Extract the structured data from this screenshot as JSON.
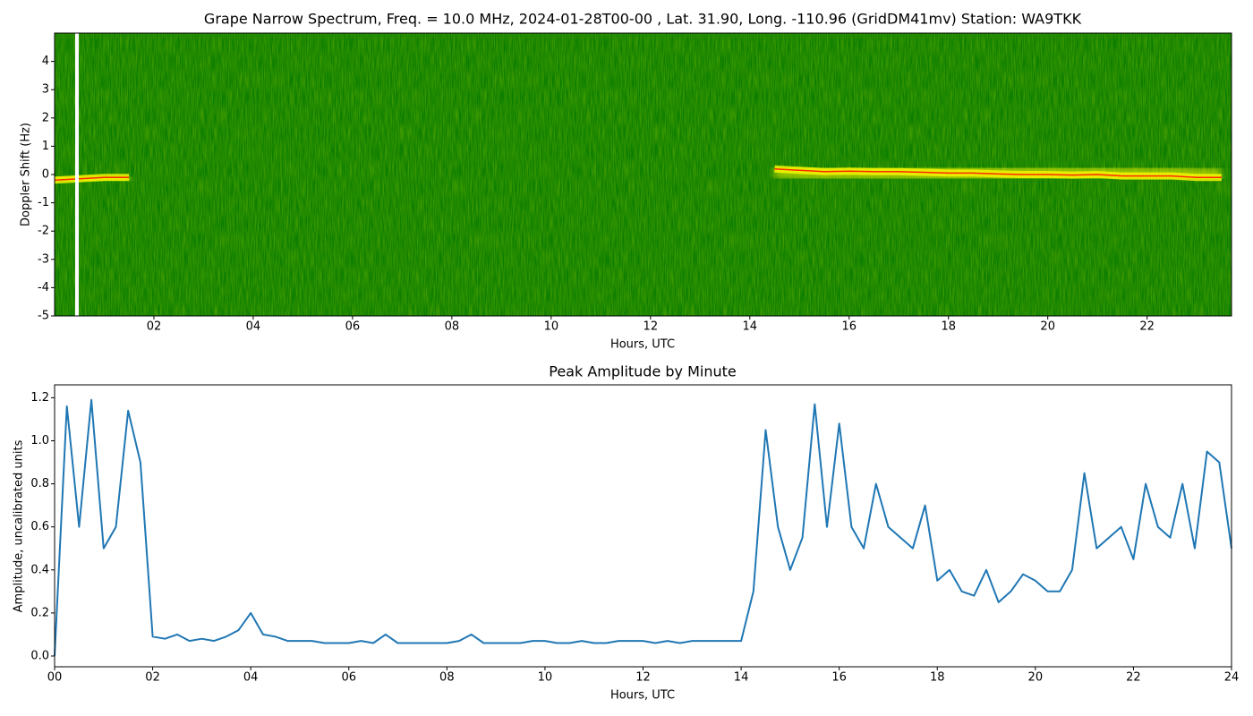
{
  "chart_data": [
    {
      "type": "spectrogram",
      "title": "Grape Narrow Spectrum, Freq. = 10.0 MHz, 2024-01-28T00-00 , Lat.  31.90, Long. -110.96 (GridDM41mv) Station: WA9TKK",
      "xlabel": "Hours, UTC",
      "ylabel": "Doppler Shift (Hz)",
      "xlim": [
        0,
        23.7
      ],
      "ylim": [
        -5,
        5
      ],
      "xticks": [
        {
          "value": 2,
          "label": "02"
        },
        {
          "value": 4,
          "label": "04"
        },
        {
          "value": 6,
          "label": "06"
        },
        {
          "value": 8,
          "label": "08"
        },
        {
          "value": 10,
          "label": "10"
        },
        {
          "value": 12,
          "label": "12"
        },
        {
          "value": 14,
          "label": "14"
        },
        {
          "value": 16,
          "label": "16"
        },
        {
          "value": 18,
          "label": "18"
        },
        {
          "value": 20,
          "label": "20"
        },
        {
          "value": 22,
          "label": "22"
        }
      ],
      "yticks": [
        -5,
        -4,
        -3,
        -2,
        -1,
        0,
        1,
        2,
        3,
        4
      ],
      "x": [
        0,
        0.5,
        1,
        1.5,
        2,
        2.5,
        3,
        3.5,
        4,
        4.5,
        5,
        5.5,
        6,
        6.5,
        7,
        7.5,
        8,
        8.5,
        9,
        9.5,
        10,
        10.5,
        11,
        11.5,
        12,
        12.5,
        13,
        13.5,
        14,
        14.5,
        15,
        15.5,
        16,
        16.5,
        17,
        17.5,
        18,
        18.5,
        19,
        19.5,
        20,
        20.5,
        21,
        21.5,
        22,
        22.5,
        23,
        23.5
      ],
      "values": [
        -0.2,
        -0.15,
        -0.1,
        -0.1,
        null,
        null,
        null,
        null,
        null,
        null,
        null,
        null,
        null,
        null,
        null,
        null,
        null,
        null,
        null,
        null,
        null,
        null,
        null,
        null,
        null,
        null,
        null,
        null,
        null,
        0.2,
        0.15,
        0.1,
        0.12,
        0.1,
        0.1,
        0.08,
        0.05,
        0.05,
        0.02,
        0.0,
        0.0,
        -0.02,
        0.0,
        -0.05,
        -0.05,
        -0.05,
        -0.1,
        -0.1
      ],
      "gap_x": [
        0.45
      ],
      "background_color": "#0b7d00",
      "signal_color": "#f4f400",
      "core_color": "#ff2a00"
    },
    {
      "type": "line",
      "title": "Peak Amplitude by Minute",
      "xlabel": "Hours, UTC",
      "ylabel": "Amplitude, uncalibrated units",
      "xlim": [
        0,
        24
      ],
      "ylim": [
        -0.05,
        1.26
      ],
      "xticks": [
        {
          "value": 0,
          "label": "00"
        },
        {
          "value": 2,
          "label": "02"
        },
        {
          "value": 4,
          "label": "04"
        },
        {
          "value": 6,
          "label": "06"
        },
        {
          "value": 8,
          "label": "08"
        },
        {
          "value": 10,
          "label": "10"
        },
        {
          "value": 12,
          "label": "12"
        },
        {
          "value": 14,
          "label": "14"
        },
        {
          "value": 16,
          "label": "16"
        },
        {
          "value": 18,
          "label": "18"
        },
        {
          "value": 20,
          "label": "20"
        },
        {
          "value": 22,
          "label": "22"
        },
        {
          "value": 24,
          "label": "24"
        }
      ],
      "yticks": [
        {
          "value": 0,
          "label": "0.0"
        },
        0.2,
        0.4,
        0.6,
        0.8,
        {
          "value": 1,
          "label": "1.0"
        },
        1.2
      ],
      "color": "#1f77b4",
      "x": [
        0,
        0.25,
        0.5,
        0.75,
        1,
        1.25,
        1.5,
        1.75,
        2,
        2.25,
        2.5,
        2.75,
        3,
        3.25,
        3.5,
        3.75,
        4,
        4.25,
        4.5,
        4.75,
        5,
        5.25,
        5.5,
        5.75,
        6,
        6.25,
        6.5,
        6.75,
        7,
        7.25,
        7.5,
        7.75,
        8,
        8.25,
        8.5,
        8.75,
        9,
        9.25,
        9.5,
        9.75,
        10,
        10.25,
        10.5,
        10.75,
        11,
        11.25,
        11.5,
        11.75,
        12,
        12.25,
        12.5,
        12.75,
        13,
        13.25,
        13.5,
        13.75,
        14,
        14.25,
        14.5,
        14.75,
        15,
        15.25,
        15.5,
        15.75,
        16,
        16.25,
        16.5,
        16.75,
        17,
        17.25,
        17.5,
        17.75,
        18,
        18.25,
        18.5,
        18.75,
        19,
        19.25,
        19.5,
        19.75,
        20,
        20.25,
        20.5,
        20.75,
        21,
        21.25,
        21.5,
        21.75,
        22,
        22.25,
        22.5,
        22.75,
        23,
        23.25,
        23.5,
        23.75,
        24
      ],
      "values": [
        0,
        1.16,
        0.6,
        1.19,
        0.5,
        0.6,
        1.14,
        0.9,
        0.09,
        0.08,
        0.1,
        0.07,
        0.08,
        0.07,
        0.09,
        0.12,
        0.2,
        0.1,
        0.09,
        0.07,
        0.07,
        0.07,
        0.06,
        0.06,
        0.06,
        0.07,
        0.06,
        0.1,
        0.06,
        0.06,
        0.06,
        0.06,
        0.06,
        0.07,
        0.1,
        0.06,
        0.06,
        0.06,
        0.06,
        0.07,
        0.07,
        0.06,
        0.06,
        0.07,
        0.06,
        0.06,
        0.07,
        0.07,
        0.07,
        0.06,
        0.07,
        0.06,
        0.07,
        0.07,
        0.07,
        0.07,
        0.07,
        0.3,
        1.05,
        0.6,
        0.4,
        0.55,
        1.17,
        0.6,
        1.08,
        0.6,
        0.5,
        0.8,
        0.6,
        0.55,
        0.5,
        0.7,
        0.35,
        0.4,
        0.3,
        0.28,
        0.4,
        0.25,
        0.3,
        0.38,
        0.35,
        0.3,
        0.3,
        0.4,
        0.85,
        0.5,
        0.55,
        0.6,
        0.45,
        0.8,
        0.6,
        0.55,
        0.8,
        0.5,
        0.95,
        0.9,
        0.5
      ]
    }
  ]
}
